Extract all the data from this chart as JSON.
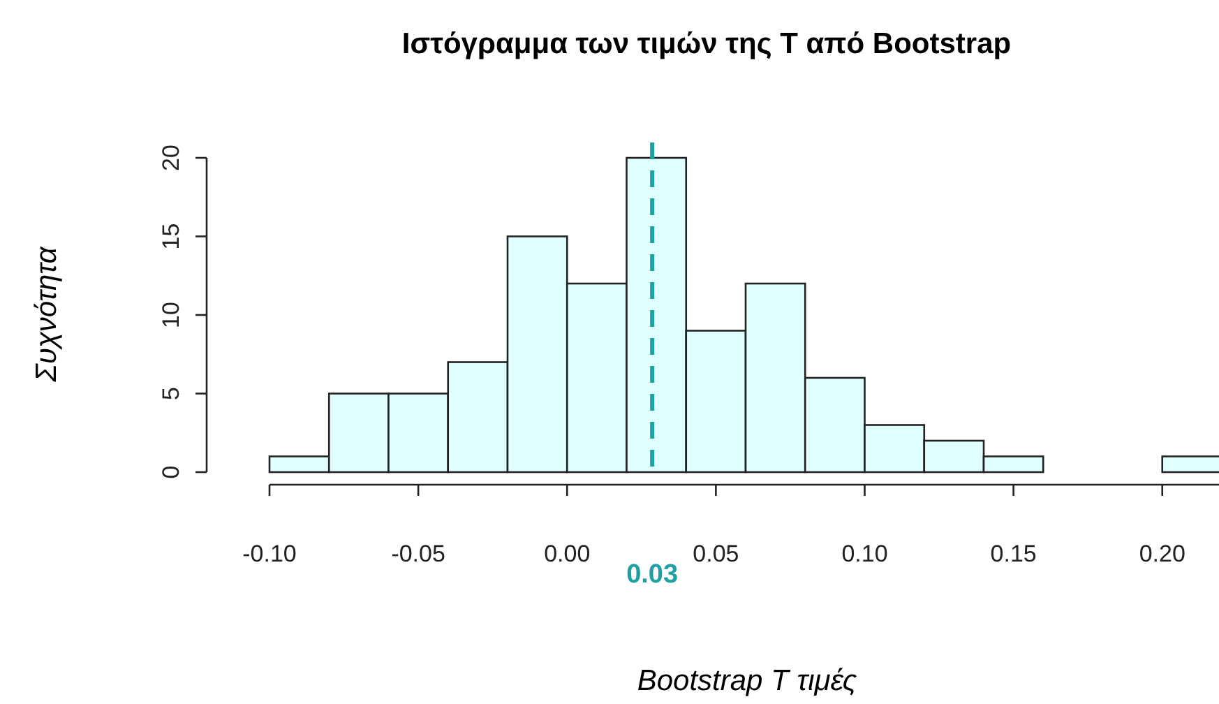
{
  "chart_data": {
    "type": "histogram",
    "title": "Ιστόγραμμα των τιμών της T από Bootstrap",
    "xlabel": "Bootstrap T τιμές",
    "ylabel": "Συχνότητα",
    "bins": [
      -0.1,
      -0.08,
      -0.06,
      -0.04,
      -0.02,
      0,
      0.02,
      0.04,
      0.06,
      0.08,
      0.1,
      0.12,
      0.14,
      0.16,
      0.18,
      0.2,
      0.22
    ],
    "values": [
      1,
      5,
      5,
      7,
      15,
      12,
      20,
      9,
      12,
      6,
      3,
      2,
      1,
      0,
      0,
      1
    ],
    "color": "#e0ffff",
    "xlim": [
      -0.1,
      0.22
    ],
    "xticks": [
      {
        "value": -0.1,
        "label": "-0.10"
      },
      {
        "value": -0.05,
        "label": "-0.05"
      },
      {
        "value": 0,
        "label": "0.00"
      },
      {
        "value": 0.05,
        "label": "0.05"
      },
      {
        "value": 0.1,
        "label": "0.10"
      },
      {
        "value": 0.15,
        "label": "0.15"
      },
      {
        "value": 0.2,
        "label": "0.20"
      }
    ],
    "ylim": [
      0,
      20
    ],
    "yticks": [
      0,
      5,
      10,
      15,
      20
    ],
    "ref_lines": [
      {
        "axis": "x",
        "value": 0.0286,
        "label": "0.03",
        "color": "#1fa0a0",
        "line_style": "dashed"
      }
    ],
    "grid": false
  }
}
